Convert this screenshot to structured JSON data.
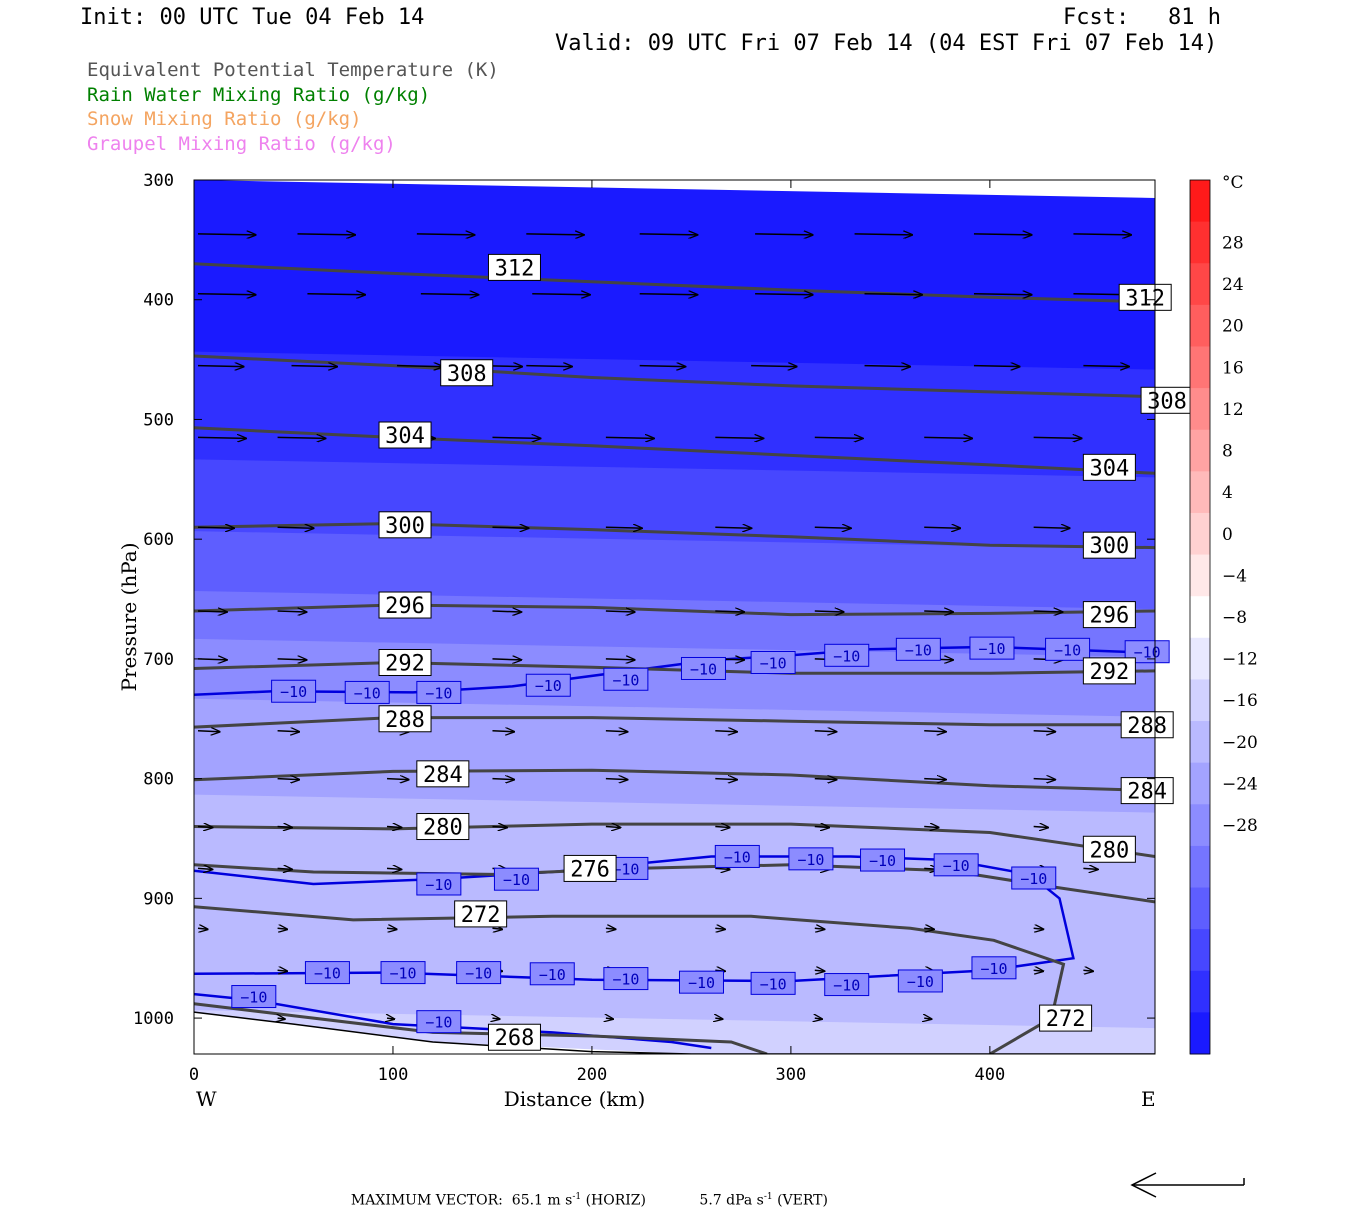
{
  "header": {
    "init": "Init: 00 UTC Tue 04 Feb 14",
    "fcst_label": "Fcst:",
    "fcst_value": "81 h",
    "valid": "Valid: 09 UTC Fri 07 Feb 14 (04 EST Fri 07 Feb 14)"
  },
  "legend": [
    {
      "text": "Equivalent Potential Temperature (K)",
      "color": "#555555"
    },
    {
      "text": "Rain Water Mixing Ratio (g/kg)",
      "color": "#008000"
    },
    {
      "text": "Snow Mixing Ratio (g/kg)",
      "color": "#f4a460"
    },
    {
      "text": "Graupel Mixing Ratio (g/kg)",
      "color": "#ee82ee"
    }
  ],
  "footer": {
    "label": "MAXIMUM VECTOR:",
    "horiz_value": "65.1 m s",
    "horiz_exp": "-1",
    "horiz_unit": "(HORIZ)",
    "vert_value": "5.7 dPa s",
    "vert_exp": "-1",
    "vert_unit": "(VERT)"
  },
  "chart_data": {
    "type": "cross-section",
    "xlabel": "Distance (km)",
    "ylabel": "Pressure (hPa)",
    "xlim": [
      0,
      483
    ],
    "ylim": [
      300,
      1030
    ],
    "x_ticks": [
      0,
      100,
      200,
      300,
      400
    ],
    "x_tick_labels": [
      "0",
      "100",
      "200",
      "300",
      "400"
    ],
    "y_ticks": [
      300,
      400,
      500,
      600,
      700,
      800,
      900,
      1000
    ],
    "y_tick_labels": [
      "300",
      "400",
      "500",
      "600",
      "700",
      "800",
      "900",
      "1000"
    ],
    "left_label": "W",
    "right_label": "E",
    "colorbar": {
      "unit": "°C",
      "tick_values": [
        28,
        24,
        20,
        16,
        12,
        8,
        4,
        0,
        -4,
        -8,
        -12,
        -16,
        -20,
        -24,
        -28
      ],
      "tick_labels": [
        "28",
        "24",
        "20",
        "16",
        "12",
        "8",
        "4",
        "0",
        "−4",
        "−8",
        "−12",
        "−16",
        "−20",
        "−24",
        "−28"
      ],
      "colors": [
        "#ff1a1a",
        "#ff3030",
        "#ff4747",
        "#ff5e5e",
        "#ff7575",
        "#ff8c8c",
        "#ffa3a3",
        "#ffbaba",
        "#ffd1d1",
        "#ffe8e8",
        "#ffffff",
        "#e8e8ff",
        "#d1d1ff",
        "#babaff",
        "#a3a3ff",
        "#8c8cff",
        "#7575ff",
        "#5e5eff",
        "#4747ff",
        "#3030ff",
        "#1a1aff"
      ]
    },
    "temperature_bands": [
      {
        "top": 300,
        "color": "#1a1aff"
      },
      {
        "top": 450,
        "color": "#3030ff"
      },
      {
        "top": 540,
        "color": "#4747ff"
      },
      {
        "top": 600,
        "color": "#5e5eff"
      },
      {
        "top": 650,
        "color": "#7575ff"
      },
      {
        "top": 690,
        "color": "#8c8cff"
      },
      {
        "top": 740,
        "color": "#a3a3ff"
      },
      {
        "top": 820,
        "color": "#babaff"
      },
      {
        "top": 1000,
        "color": "#d1d1ff"
      }
    ],
    "theta_e_contours": [
      {
        "level": "312",
        "points": [
          [
            0,
            370
          ],
          [
            100,
            378
          ],
          [
            200,
            385
          ],
          [
            300,
            392
          ],
          [
            400,
            398
          ],
          [
            483,
            402
          ]
        ],
        "labels": [
          [
            148,
            373
          ],
          [
            465,
            398
          ]
        ]
      },
      {
        "level": "308",
        "points": [
          [
            0,
            447
          ],
          [
            100,
            455
          ],
          [
            200,
            465
          ],
          [
            300,
            472
          ],
          [
            400,
            477
          ],
          [
            483,
            481
          ]
        ],
        "labels": [
          [
            124,
            461
          ],
          [
            476,
            484
          ]
        ]
      },
      {
        "level": "304",
        "points": [
          [
            0,
            507
          ],
          [
            100,
            515
          ],
          [
            200,
            522
          ],
          [
            300,
            530
          ],
          [
            400,
            538
          ],
          [
            483,
            545
          ]
        ],
        "labels": [
          [
            93,
            513
          ],
          [
            447,
            540
          ]
        ]
      },
      {
        "level": "300",
        "points": [
          [
            0,
            590
          ],
          [
            100,
            587
          ],
          [
            200,
            592
          ],
          [
            300,
            598
          ],
          [
            400,
            605
          ],
          [
            483,
            607
          ]
        ],
        "labels": [
          [
            93,
            588
          ],
          [
            447,
            605
          ]
        ]
      },
      {
        "level": "296",
        "points": [
          [
            0,
            660
          ],
          [
            100,
            655
          ],
          [
            200,
            657
          ],
          [
            300,
            663
          ],
          [
            400,
            662
          ],
          [
            483,
            660
          ]
        ],
        "labels": [
          [
            93,
            655
          ],
          [
            447,
            663
          ]
        ]
      },
      {
        "level": "292",
        "points": [
          [
            0,
            708
          ],
          [
            100,
            703
          ],
          [
            200,
            707
          ],
          [
            300,
            712
          ],
          [
            400,
            712
          ],
          [
            483,
            710
          ]
        ],
        "labels": [
          [
            93,
            703
          ],
          [
            447,
            710
          ]
        ]
      },
      {
        "level": "288",
        "points": [
          [
            0,
            757
          ],
          [
            100,
            749
          ],
          [
            200,
            749
          ],
          [
            300,
            752
          ],
          [
            400,
            755
          ],
          [
            483,
            755
          ]
        ],
        "labels": [
          [
            93,
            750
          ],
          [
            466,
            755
          ]
        ]
      },
      {
        "level": "284",
        "points": [
          [
            0,
            801
          ],
          [
            100,
            794
          ],
          [
            200,
            793
          ],
          [
            300,
            797
          ],
          [
            400,
            806
          ],
          [
            483,
            810
          ]
        ],
        "labels": [
          [
            112,
            796
          ],
          [
            466,
            810
          ]
        ]
      },
      {
        "level": "280",
        "points": [
          [
            0,
            840
          ],
          [
            100,
            842
          ],
          [
            200,
            838
          ],
          [
            300,
            838
          ],
          [
            400,
            845
          ],
          [
            483,
            865
          ]
        ],
        "labels": [
          [
            112,
            840
          ],
          [
            447,
            859
          ]
        ]
      },
      {
        "level": "276",
        "points": [
          [
            0,
            872
          ],
          [
            60,
            878
          ],
          [
            150,
            880
          ],
          [
            220,
            875
          ],
          [
            300,
            872
          ],
          [
            380,
            877
          ],
          [
            430,
            890
          ],
          [
            483,
            903
          ]
        ],
        "labels": [
          [
            186,
            875
          ]
        ]
      },
      {
        "level": "272",
        "points": [
          [
            0,
            907
          ],
          [
            80,
            918
          ],
          [
            180,
            915
          ],
          [
            280,
            915
          ],
          [
            360,
            925
          ],
          [
            402,
            935
          ],
          [
            437,
            955
          ],
          [
            431,
            1000
          ],
          [
            400,
            1030
          ]
        ],
        "labels": [
          [
            131,
            913
          ],
          [
            425,
            1000
          ]
        ]
      },
      {
        "level": "268",
        "points": [
          [
            0,
            988
          ],
          [
            50,
            998
          ],
          [
            120,
            1012
          ],
          [
            200,
            1015
          ],
          [
            270,
            1020
          ],
          [
            288,
            1030
          ]
        ],
        "labels": [
          [
            148,
            1016
          ]
        ]
      },
      {
        "level": "",
        "points": [
          [
            0,
            995
          ],
          [
            50,
            1005
          ],
          [
            120,
            1020
          ],
          [
            200,
            1028
          ],
          [
            250,
            1030
          ],
          [
            483,
            1030
          ]
        ],
        "labels": [],
        "color": "#000000"
      }
    ],
    "rain_mixing_contours": [
      {
        "level": "−10",
        "points": [
          [
            0,
            730
          ],
          [
            40,
            727
          ],
          [
            110,
            728
          ],
          [
            160,
            723
          ],
          [
            260,
            701
          ],
          [
            300,
            697
          ],
          [
            340,
            692
          ],
          [
            400,
            690
          ],
          [
            483,
            695
          ]
        ],
        "labels": [
          [
            38,
            727
          ],
          [
            75,
            728
          ],
          [
            111,
            728
          ],
          [
            166,
            722
          ],
          [
            205,
            717
          ],
          [
            244,
            708
          ],
          [
            279,
            703
          ],
          [
            316,
            697
          ],
          [
            352,
            692
          ],
          [
            389,
            691
          ],
          [
            427,
            692
          ],
          [
            467,
            694
          ]
        ]
      },
      {
        "level": "−10",
        "points": [
          [
            0,
            877
          ],
          [
            60,
            888
          ],
          [
            120,
            884
          ],
          [
            180,
            878
          ],
          [
            260,
            865
          ],
          [
            330,
            865
          ],
          [
            380,
            868
          ],
          [
            420,
            880
          ],
          [
            435,
            900
          ],
          [
            442,
            950
          ],
          [
            400,
            960
          ],
          [
            300,
            969
          ],
          [
            200,
            968
          ],
          [
            100,
            962
          ],
          [
            0,
            963
          ]
        ],
        "labels": [
          [
            111,
            888
          ],
          [
            150,
            884
          ],
          [
            205,
            875
          ],
          [
            261,
            865
          ],
          [
            298,
            867
          ],
          [
            334,
            868
          ],
          [
            371,
            872
          ],
          [
            410,
            883
          ],
          [
            55,
            962
          ],
          [
            93,
            962
          ],
          [
            131,
            962
          ],
          [
            168,
            963
          ],
          [
            205,
            967
          ],
          [
            243,
            970
          ],
          [
            279,
            971
          ],
          [
            316,
            972
          ],
          [
            353,
            969
          ],
          [
            390,
            958
          ]
        ]
      },
      {
        "level": "−10",
        "points": [
          [
            0,
            980
          ],
          [
            30,
            985
          ],
          [
            100,
            1005
          ],
          [
            180,
            1012
          ],
          [
            240,
            1020
          ],
          [
            260,
            1025
          ]
        ],
        "labels": [
          [
            18,
            982
          ],
          [
            111,
            1003
          ]
        ]
      }
    ],
    "wind_arrows": [
      {
        "y": 300,
        "x": [
          0,
          483
        ],
        "len": 0
      },
      {
        "y": 345,
        "x": [
          0,
          50,
          110,
          165,
          222,
          280,
          330,
          390,
          440
        ],
        "len": 48
      },
      {
        "y": 395,
        "x": [
          0,
          55,
          112,
          168,
          222,
          280,
          335,
          390,
          440
        ],
        "len": 48
      },
      {
        "y": 455,
        "x": [
          0,
          47,
          100,
          140,
          165,
          222,
          278,
          335,
          390,
          445
        ],
        "len": 38
      },
      {
        "y": 515,
        "x": [
          0,
          40,
          95,
          148,
          205,
          260,
          310,
          365,
          420
        ],
        "len": 40
      },
      {
        "y": 590,
        "x": [
          0,
          40,
          95,
          148,
          205,
          260,
          310,
          365,
          420
        ],
        "len": 30
      },
      {
        "y": 660,
        "x": [
          0,
          40,
          95,
          148,
          205,
          260,
          310,
          365,
          420
        ],
        "len": 24
      },
      {
        "y": 700,
        "x": [
          0,
          40,
          95,
          148,
          205,
          260,
          310,
          365,
          420
        ],
        "len": 24
      },
      {
        "y": 760,
        "x": [
          0,
          40,
          95,
          148,
          205,
          260,
          310,
          365,
          420
        ],
        "len": 18
      },
      {
        "y": 800,
        "x": [
          40,
          95,
          148,
          205,
          260,
          310,
          365,
          420
        ],
        "len": 18
      },
      {
        "y": 840,
        "x": [
          0,
          40,
          95,
          148,
          205,
          260,
          310,
          365,
          420
        ],
        "len": 12
      },
      {
        "y": 875,
        "x": [
          0,
          40,
          95,
          148,
          205,
          260,
          310,
          365,
          420,
          445
        ],
        "len": 12
      },
      {
        "y": 925,
        "x": [
          0,
          40,
          95,
          148,
          205,
          260,
          310,
          365,
          420
        ],
        "len": 8
      },
      {
        "y": 960,
        "x": [
          40,
          95,
          148,
          205,
          260,
          310,
          365,
          420,
          445
        ],
        "len": 8
      },
      {
        "y": 1000,
        "x": [
          40,
          95,
          148,
          205,
          260,
          310,
          365
        ],
        "len": 6
      }
    ]
  }
}
